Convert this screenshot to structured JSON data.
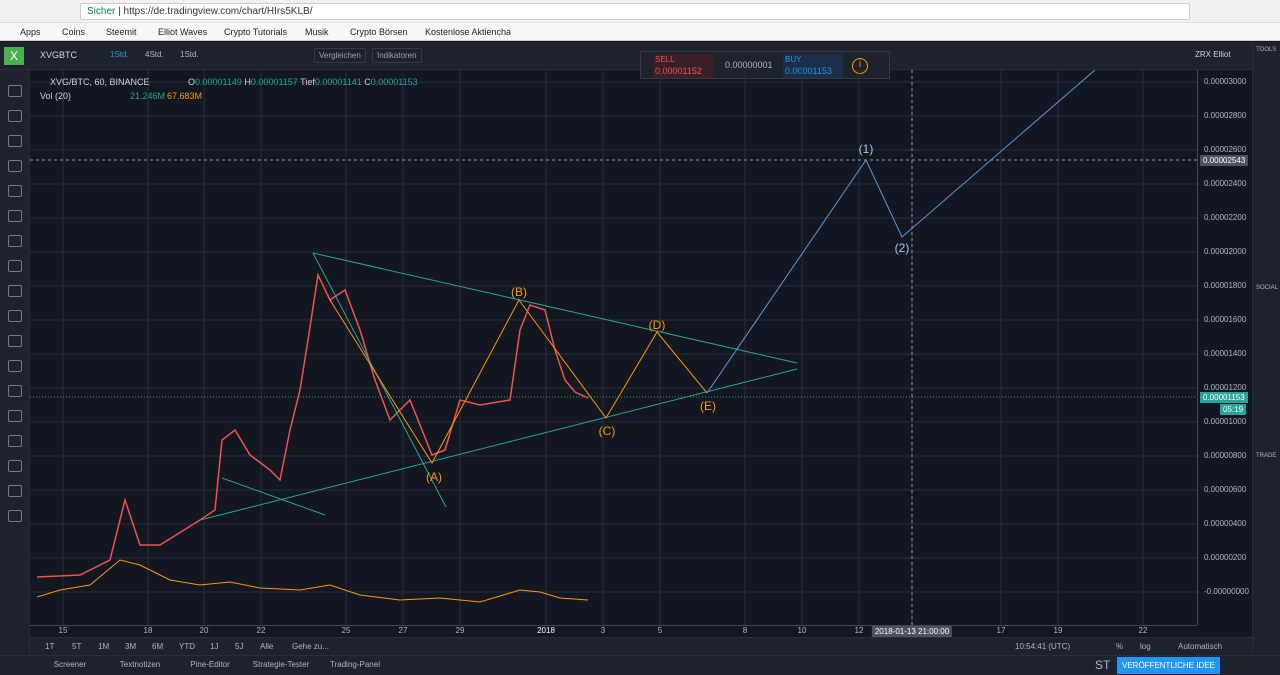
{
  "browser": {
    "secure": "Sicher",
    "url": "https://de.tradingview.com/chart/HIrs5KLB/",
    "bookmarks": [
      "Apps",
      "Coins",
      "Steemit",
      "Elliot Waves",
      "Crypto Tutorials",
      "Musik",
      "Crypto Börsen",
      "Kostenlose Aktiencha"
    ]
  },
  "toolbar": {
    "symbol": "XVGBTC",
    "intervals": [
      "1Std.",
      "4Std.",
      "1Std."
    ],
    "buttons": [
      "Vergleichen",
      "Indikatoren"
    ],
    "layout": "ZRX Elliot"
  },
  "trade": {
    "sell": "SELL",
    "sell_price": "0.00001152",
    "spread": "0.00000001",
    "buy": "BUY",
    "buy_price": "0.00001153"
  },
  "legend": {
    "title": "XVG/BTC, 60, BINANCE",
    "open_label": "O",
    "open": "0.00001149",
    "high_label": "H",
    "high": "0.00001157",
    "low_label": "Tief",
    "low": "0.00001141",
    "close_label": "C",
    "close": "0.00001153",
    "volume": "Vol (20)",
    "vol1": "21.246M",
    "vol2": "67.683M"
  },
  "price_axis": [
    "0.00003000",
    "0.00002800",
    "0.00002600",
    "0.00002400",
    "0.00002200",
    "0.00002000",
    "0.00001800",
    "0.00001600",
    "0.00001400",
    "0.00001200",
    "0.00001000",
    "0.00000800",
    "0.00000600",
    "0.00000400",
    "0.00000200",
    "-0.00000000"
  ],
  "price_marks": {
    "crosshair": "0.00002543",
    "last": "0.00001153",
    "countdown": "05:19"
  },
  "waves": [
    "(1)",
    "(2)",
    "(A)",
    "(B)",
    "(C)",
    "(D)",
    "(E)"
  ],
  "time_axis": [
    "15",
    "18",
    "20",
    "22",
    "25",
    "27",
    "29",
    "2018",
    "3",
    "5",
    "8",
    "10",
    "12",
    "2018-01-13 21:00:00",
    "17",
    "19",
    "22"
  ],
  "bottom_bar": {
    "ranges": [
      "1T",
      "5T",
      "1M",
      "3M",
      "6M",
      "YTD",
      "1J",
      "5J",
      "Alle"
    ],
    "goto": "Gehe zu...",
    "clock": "10:54:41 (UTC)",
    "options": [
      "%",
      "log",
      "Automatisch"
    ]
  },
  "tabs": [
    "Screener",
    "Textnotizen",
    "Pine-Editor",
    "Strategie-Tester",
    "Trading-Panel"
  ],
  "publish": {
    "short": "ST",
    "button": "VERÖFFENTLICHE IDEE"
  },
  "sidebar": [
    "TOOLS",
    "SOCIAL",
    "TRADE"
  ]
}
